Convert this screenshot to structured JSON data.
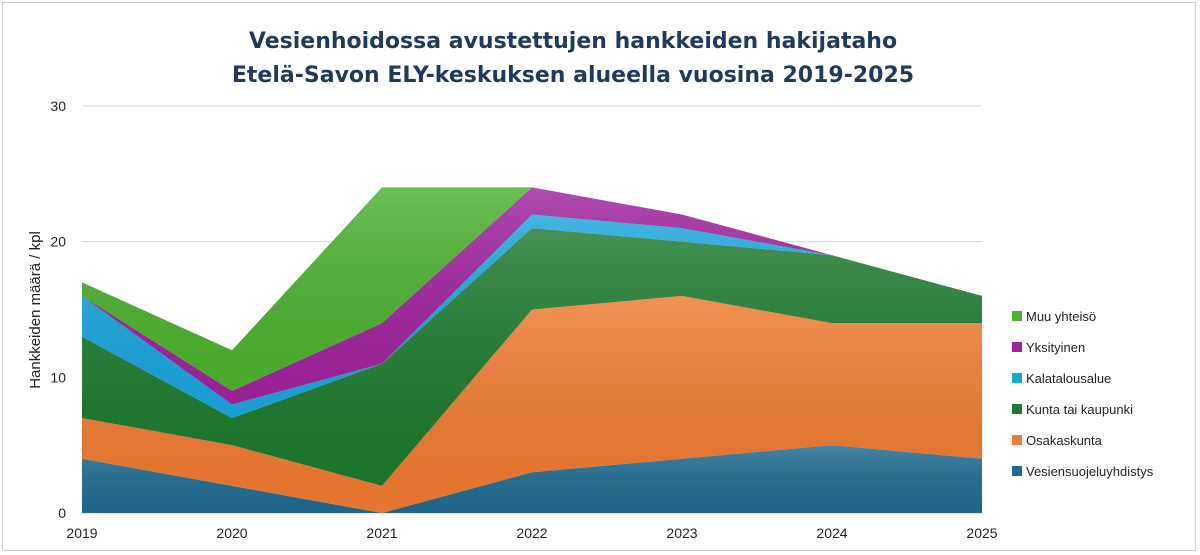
{
  "chart_data": {
    "type": "area",
    "stacked": true,
    "title_lines": [
      "Vesienhoidossa avustettujen hankkeiden hakijataho",
      "Etelä-Savon ELY-keskuksen alueella vuosina 2019-2025"
    ],
    "xlabel": "",
    "ylabel": "Hankkeiden määrä / kpl",
    "ylim": [
      0,
      30
    ],
    "yticks": [
      0,
      10,
      20,
      30
    ],
    "categories": [
      "2019",
      "2020",
      "2021",
      "2022",
      "2023",
      "2024",
      "2025"
    ],
    "grid": true,
    "legend_placement": "right",
    "series": [
      {
        "name": "Vesiensuojeluyhdistys",
        "color": "#1f6b8f",
        "values": [
          4,
          2,
          0,
          3,
          4,
          5,
          4
        ]
      },
      {
        "name": "Osakaskunta",
        "color": "#f07a30",
        "values": [
          3,
          3,
          2,
          12,
          12,
          9,
          10
        ]
      },
      {
        "name": "Kunta tai kaupunki",
        "color": "#1c7a2e",
        "values": [
          6,
          2,
          9,
          6,
          4,
          5,
          2
        ]
      },
      {
        "name": "Kalatalousalue",
        "color": "#1aa6dd",
        "values": [
          3,
          1,
          0,
          1,
          1,
          0,
          0
        ]
      },
      {
        "name": "Yksityinen",
        "color": "#a0239d",
        "values": [
          0,
          1,
          3,
          2,
          1,
          0,
          0
        ]
      },
      {
        "name": "Muu yhteisö",
        "color": "#4cb22f",
        "values": [
          1,
          3,
          10,
          0,
          0,
          0,
          0
        ]
      }
    ]
  }
}
